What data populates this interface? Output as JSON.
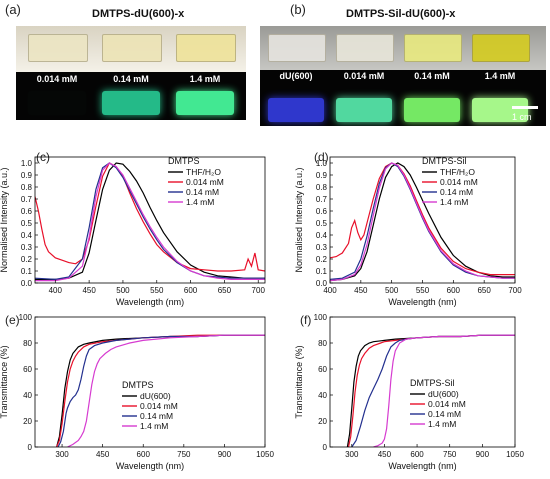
{
  "photos": {
    "a": {
      "label": "(a)",
      "title": "DMTPS-dU(600)-x",
      "samples": [
        {
          "label": "0.014 mM",
          "day": "#ece5c3",
          "glow": "#1a2a22",
          "glow_strength": 0.08
        },
        {
          "label": "0.14 mM",
          "day": "#ede4b6",
          "glow": "#2ff7b4",
          "glow_strength": 0.75
        },
        {
          "label": "1.4 mM",
          "day": "#efe39a",
          "glow": "#46f59a",
          "glow_strength": 0.95
        }
      ]
    },
    "b": {
      "label": "(b)",
      "title": "DMTPS-Sil-dU(600)-x",
      "samples": [
        {
          "label": "dU(600)",
          "day": "#e6e4df",
          "glow": "#3a44ff",
          "glow_strength": 0.8
        },
        {
          "label": "0.014 mM",
          "day": "#e8e6da",
          "glow": "#5af0b0",
          "glow_strength": 0.9
        },
        {
          "label": "0.14 mM",
          "day": "#e9ea80",
          "glow": "#7cf56a",
          "glow_strength": 0.95
        },
        {
          "label": "1.4 mM",
          "day": "#d5cc20",
          "glow": "#a6f78a",
          "glow_strength": 1.0
        }
      ],
      "scale_label": "1 cm"
    }
  },
  "chart_data": [
    {
      "id": "c",
      "panel_label": "(c)",
      "type": "line",
      "xlabel": "Wavelength (nm)",
      "ylabel": "Normalised Intensity (a.u.)",
      "xlim": [
        370,
        710
      ],
      "ylim": [
        0,
        1.05
      ],
      "xticks": [
        400,
        450,
        500,
        550,
        600,
        650,
        700
      ],
      "yticks": [
        0.0,
        0.1,
        0.2,
        0.3,
        0.4,
        0.5,
        0.6,
        0.7,
        0.8,
        0.9,
        1.0
      ],
      "legend_title": "DMTPS",
      "legend_position": "top-right",
      "series": [
        {
          "name": "THF/H₂O",
          "color": "#000000",
          "x": [
            370,
            400,
            420,
            440,
            450,
            460,
            470,
            480,
            490,
            500,
            510,
            520,
            530,
            540,
            550,
            560,
            580,
            600,
            620,
            640,
            660,
            680,
            700,
            710
          ],
          "y": [
            0.03,
            0.03,
            0.04,
            0.09,
            0.25,
            0.52,
            0.78,
            0.94,
            1.0,
            0.99,
            0.93,
            0.85,
            0.75,
            0.63,
            0.52,
            0.42,
            0.26,
            0.15,
            0.09,
            0.06,
            0.05,
            0.04,
            0.04,
            0.04
          ]
        },
        {
          "name": "0.014 mM",
          "color": "#e8102a",
          "x": [
            370,
            375,
            380,
            385,
            390,
            400,
            410,
            420,
            430,
            440,
            450,
            460,
            470,
            480,
            490,
            500,
            510,
            520,
            530,
            540,
            550,
            560,
            580,
            600,
            620,
            640,
            660,
            680,
            685,
            690,
            695,
            700,
            710
          ],
          "y": [
            0.72,
            0.6,
            0.45,
            0.32,
            0.26,
            0.21,
            0.19,
            0.17,
            0.16,
            0.2,
            0.36,
            0.64,
            0.89,
            1.0,
            0.97,
            0.89,
            0.75,
            0.62,
            0.51,
            0.41,
            0.32,
            0.26,
            0.17,
            0.12,
            0.11,
            0.1,
            0.1,
            0.11,
            0.2,
            0.14,
            0.25,
            0.11,
            0.1
          ]
        },
        {
          "name": "0.14 mM",
          "color": "#23308f",
          "x": [
            370,
            400,
            420,
            440,
            450,
            460,
            470,
            480,
            490,
            500,
            510,
            520,
            530,
            540,
            550,
            560,
            580,
            600,
            620,
            640,
            660,
            680,
            700,
            710
          ],
          "y": [
            0.04,
            0.03,
            0.05,
            0.2,
            0.46,
            0.78,
            0.96,
            1.0,
            0.96,
            0.88,
            0.77,
            0.66,
            0.55,
            0.45,
            0.36,
            0.28,
            0.17,
            0.1,
            0.06,
            0.05,
            0.04,
            0.04,
            0.04,
            0.04
          ]
        },
        {
          "name": "1.4 mM",
          "color": "#d63bd0",
          "x": [
            370,
            400,
            420,
            440,
            450,
            460,
            470,
            480,
            490,
            500,
            510,
            520,
            530,
            540,
            550,
            560,
            580,
            600,
            620,
            640,
            660,
            680,
            700,
            710
          ],
          "y": [
            0.02,
            0.02,
            0.04,
            0.14,
            0.38,
            0.72,
            0.94,
            1.0,
            0.97,
            0.9,
            0.79,
            0.68,
            0.57,
            0.47,
            0.38,
            0.3,
            0.18,
            0.1,
            0.06,
            0.04,
            0.03,
            0.03,
            0.03,
            0.03
          ]
        }
      ]
    },
    {
      "id": "d",
      "panel_label": "(d)",
      "type": "line",
      "xlabel": "Wavelength (nm)",
      "ylabel": "Normalised Intensity (a.u.)",
      "xlim": [
        400,
        700
      ],
      "ylim": [
        0,
        1.05
      ],
      "xticks": [
        400,
        450,
        500,
        550,
        600,
        650,
        700
      ],
      "yticks": [
        0.0,
        0.1,
        0.2,
        0.3,
        0.4,
        0.5,
        0.6,
        0.7,
        0.8,
        0.9,
        1.0
      ],
      "legend_title": "DMTPS-Sil",
      "legend_position": "top-right",
      "series": [
        {
          "name": "THF/H₂O",
          "color": "#000000",
          "x": [
            400,
            420,
            440,
            450,
            460,
            470,
            480,
            490,
            500,
            510,
            520,
            530,
            540,
            550,
            560,
            580,
            600,
            620,
            640,
            660,
            680,
            700
          ],
          "y": [
            0.02,
            0.03,
            0.06,
            0.12,
            0.26,
            0.48,
            0.7,
            0.88,
            0.97,
            1.0,
            0.97,
            0.9,
            0.8,
            0.69,
            0.58,
            0.38,
            0.23,
            0.14,
            0.09,
            0.06,
            0.05,
            0.05
          ]
        },
        {
          "name": "0.014 mM",
          "color": "#e8102a",
          "x": [
            400,
            410,
            420,
            430,
            435,
            440,
            445,
            450,
            455,
            460,
            470,
            480,
            490,
            500,
            510,
            520,
            530,
            540,
            550,
            560,
            580,
            600,
            620,
            640,
            660,
            680,
            700
          ],
          "y": [
            0.21,
            0.22,
            0.25,
            0.33,
            0.46,
            0.52,
            0.42,
            0.36,
            0.4,
            0.5,
            0.7,
            0.87,
            0.97,
            1.0,
            0.98,
            0.91,
            0.81,
            0.69,
            0.57,
            0.46,
            0.29,
            0.18,
            0.12,
            0.09,
            0.07,
            0.07,
            0.07
          ]
        },
        {
          "name": "0.14 mM",
          "color": "#23308f",
          "x": [
            400,
            420,
            440,
            450,
            460,
            470,
            480,
            490,
            500,
            510,
            520,
            530,
            540,
            550,
            560,
            580,
            600,
            620,
            640,
            660,
            680,
            700
          ],
          "y": [
            0.03,
            0.04,
            0.09,
            0.2,
            0.39,
            0.62,
            0.83,
            0.96,
            1.0,
            0.97,
            0.89,
            0.78,
            0.66,
            0.54,
            0.43,
            0.26,
            0.15,
            0.09,
            0.06,
            0.05,
            0.04,
            0.04
          ]
        },
        {
          "name": "1.4 mM",
          "color": "#d63bd0",
          "x": [
            400,
            420,
            440,
            450,
            460,
            470,
            480,
            490,
            500,
            510,
            520,
            530,
            540,
            550,
            560,
            580,
            600,
            620,
            640,
            660,
            680,
            700
          ],
          "y": [
            0.02,
            0.03,
            0.07,
            0.15,
            0.32,
            0.56,
            0.79,
            0.95,
            1.0,
            0.98,
            0.9,
            0.79,
            0.67,
            0.55,
            0.44,
            0.27,
            0.16,
            0.1,
            0.06,
            0.05,
            0.04,
            0.04
          ]
        }
      ]
    },
    {
      "id": "e",
      "panel_label": "(e)",
      "type": "line",
      "xlabel": "Wavelength (nm)",
      "ylabel": "Transmittance (%)",
      "xlim": [
        200,
        1050
      ],
      "ylim": [
        0,
        100
      ],
      "xticks": [
        300,
        450,
        600,
        750,
        900,
        1050
      ],
      "yticks": [
        0,
        20,
        40,
        60,
        80,
        100
      ],
      "legend_title": "DMTPS",
      "legend_position": "center-right",
      "series": [
        {
          "name": "dU(600)",
          "color": "#000000",
          "x": [
            280,
            290,
            300,
            310,
            320,
            330,
            340,
            360,
            380,
            400,
            450,
            500,
            600,
            700,
            800,
            900,
            1000,
            1050
          ],
          "y": [
            0,
            8,
            25,
            45,
            58,
            67,
            72,
            77,
            79,
            80,
            82,
            83,
            84,
            85,
            85,
            86,
            86,
            86
          ]
        },
        {
          "name": "0.014 mM",
          "color": "#e8102a",
          "x": [
            280,
            290,
            300,
            310,
            320,
            330,
            340,
            350,
            360,
            380,
            400,
            450,
            500,
            600,
            700,
            800,
            900,
            1000,
            1050
          ],
          "y": [
            0,
            5,
            18,
            35,
            50,
            60,
            66,
            70,
            73,
            77,
            79,
            81,
            82,
            84,
            85,
            86,
            86,
            86,
            86
          ]
        },
        {
          "name": "0.14 mM",
          "color": "#23308f",
          "x": [
            285,
            295,
            305,
            315,
            320,
            330,
            340,
            350,
            360,
            370,
            380,
            390,
            400,
            420,
            450,
            500,
            600,
            700,
            800,
            900,
            1000,
            1050
          ],
          "y": [
            0,
            4,
            12,
            26,
            30,
            35,
            38,
            40,
            44,
            52,
            62,
            70,
            75,
            78,
            80,
            82,
            84,
            85,
            85,
            86,
            86,
            86
          ]
        },
        {
          "name": "1.4 mM",
          "color": "#d63bd0",
          "x": [
            320,
            340,
            360,
            370,
            380,
            390,
            400,
            410,
            420,
            430,
            440,
            460,
            480,
            500,
            550,
            600,
            700,
            800,
            900,
            1000,
            1050
          ],
          "y": [
            0,
            2,
            5,
            8,
            12,
            20,
            34,
            48,
            58,
            64,
            68,
            72,
            75,
            77,
            80,
            82,
            84,
            85,
            86,
            86,
            86
          ]
        }
      ]
    },
    {
      "id": "f",
      "panel_label": "(f)",
      "type": "line",
      "xlabel": "Wavelength (nm)",
      "ylabel": "Transmittance (%)",
      "xlim": [
        200,
        1050
      ],
      "ylim": [
        0,
        100
      ],
      "xticks": [
        300,
        450,
        600,
        750,
        900,
        1050
      ],
      "yticks": [
        0,
        20,
        40,
        60,
        80,
        100
      ],
      "legend_title": "DMTPS-Sil",
      "legend_position": "center-right",
      "series": [
        {
          "name": "dU(600)",
          "color": "#000000",
          "x": [
            280,
            290,
            300,
            310,
            320,
            330,
            340,
            360,
            380,
            400,
            450,
            500,
            600,
            700,
            800,
            900,
            1000,
            1050
          ],
          "y": [
            0,
            10,
            30,
            50,
            62,
            70,
            74,
            78,
            80,
            81,
            82,
            83,
            84,
            85,
            85,
            86,
            86,
            86
          ]
        },
        {
          "name": "0.014 mM",
          "color": "#e8102a",
          "x": [
            285,
            295,
            305,
            315,
            325,
            335,
            345,
            360,
            380,
            400,
            450,
            500,
            600,
            700,
            800,
            900,
            1000,
            1050
          ],
          "y": [
            0,
            8,
            24,
            42,
            55,
            63,
            68,
            72,
            76,
            78,
            81,
            82,
            84,
            85,
            85,
            86,
            86,
            86
          ]
        },
        {
          "name": "0.14 mM",
          "color": "#23308f",
          "x": [
            300,
            320,
            340,
            360,
            380,
            400,
            420,
            440,
            460,
            480,
            500,
            520,
            550,
            600,
            700,
            800,
            900,
            1000,
            1050
          ],
          "y": [
            0,
            5,
            16,
            28,
            38,
            45,
            52,
            60,
            70,
            77,
            80,
            82,
            83,
            84,
            85,
            85,
            86,
            86,
            86
          ]
        },
        {
          "name": "1.4 mM",
          "color": "#d63bd0",
          "x": [
            400,
            420,
            440,
            450,
            460,
            470,
            480,
            490,
            500,
            520,
            550,
            600,
            700,
            800,
            900,
            1000,
            1050
          ],
          "y": [
            0,
            1,
            3,
            6,
            14,
            32,
            52,
            66,
            74,
            80,
            83,
            84,
            85,
            85,
            86,
            86,
            86
          ]
        }
      ]
    }
  ]
}
